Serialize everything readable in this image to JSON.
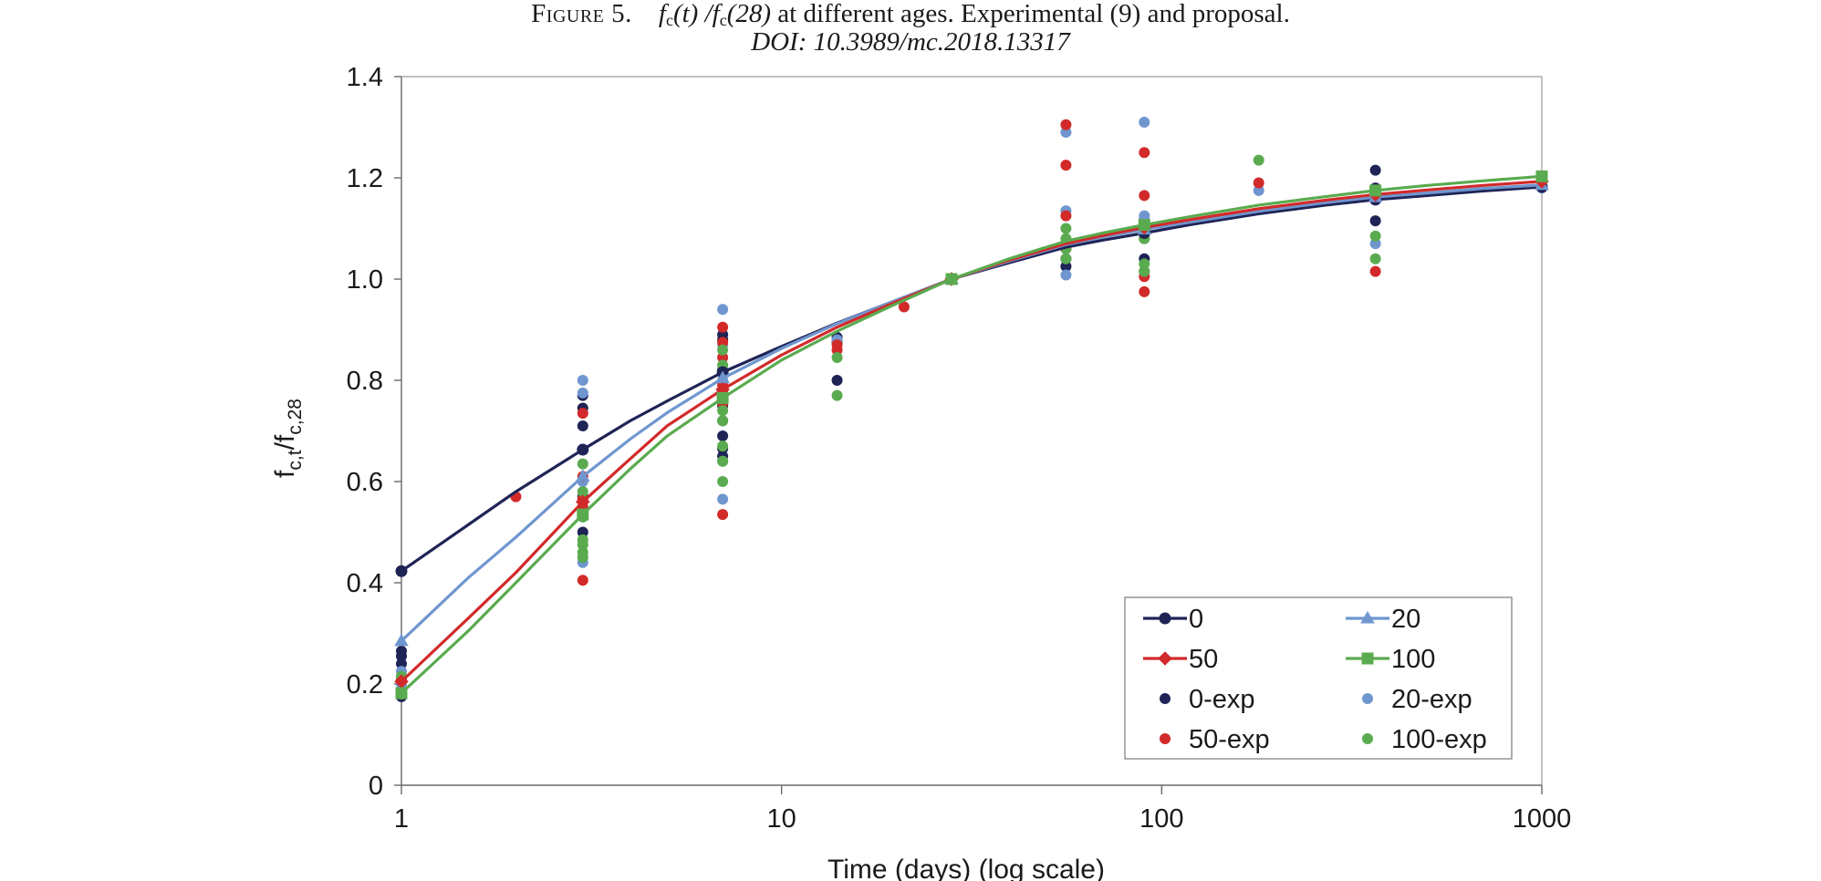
{
  "caption": {
    "figure_label": "Figure 5.",
    "f1": "f",
    "sub1": "c",
    "arg1": "(t)",
    "sep": " /",
    "f2": "f",
    "sub2": "c",
    "arg2": "(28)",
    "rest": " at different ages. Experimental (9) and proposal.",
    "doi": "DOI: 10.3989/mc.2018.13317"
  },
  "chart_data": {
    "type": "scatter",
    "x_scale": "log",
    "xlim": [
      1,
      1000
    ],
    "ylim": [
      0,
      1.4
    ],
    "xticks": [
      1,
      10,
      100,
      1000
    ],
    "xtick_labels": [
      "1",
      "10",
      "100",
      "1000"
    ],
    "yticks": [
      0,
      0.2,
      0.4,
      0.6,
      0.8,
      1.0,
      1.2,
      1.4
    ],
    "ytick_labels": [
      "0",
      "0.2",
      "0.4",
      "0.6",
      "0.8",
      "1.0",
      "1.2",
      "1.4"
    ],
    "xlabel": "Time (days) (log scale)",
    "ylabel_main": "f",
    "ylabel_sub1": "c,t",
    "ylabel_mid": "/f",
    "ylabel_sub2": "c,28",
    "grid": false,
    "legend_position": "bottom-right",
    "series": [
      {
        "name": "0",
        "kind": "line",
        "marker": "circle",
        "color": "#1f2456",
        "x": [
          1,
          2,
          3,
          4,
          5,
          7,
          10,
          14,
          20,
          28,
          40,
          56,
          70,
          90,
          120,
          180,
          270,
          365,
          500,
          700,
          1000
        ],
        "y": [
          0.423,
          0.58,
          0.663,
          0.72,
          0.759,
          0.816,
          0.867,
          0.913,
          0.958,
          1.0,
          1.033,
          1.063,
          1.077,
          1.091,
          1.108,
          1.129,
          1.146,
          1.157,
          1.165,
          1.174,
          1.182
        ],
        "marker_x": [
          1,
          3,
          7,
          28,
          90,
          365,
          1000
        ]
      },
      {
        "name": "20",
        "kind": "line",
        "marker": "triangle",
        "color": "#6f96cf",
        "x": [
          1,
          1.5,
          2,
          3,
          4,
          5,
          7,
          10,
          14,
          20,
          28,
          40,
          56,
          70,
          90,
          120,
          180,
          270,
          365,
          500,
          700,
          1000
        ],
        "y": [
          0.285,
          0.41,
          0.49,
          0.61,
          0.684,
          0.736,
          0.804,
          0.863,
          0.912,
          0.958,
          1.0,
          1.036,
          1.068,
          1.083,
          1.098,
          1.113,
          1.134,
          1.151,
          1.162,
          1.17,
          1.179,
          1.186
        ],
        "marker_x": [
          1,
          3,
          7,
          28,
          90,
          365,
          1000
        ]
      },
      {
        "name": "50",
        "kind": "line",
        "marker": "diamond",
        "color": "#d22a2a",
        "x": [
          1,
          1.5,
          2,
          3,
          4,
          5,
          7,
          10,
          14,
          20,
          28,
          40,
          56,
          70,
          90,
          120,
          180,
          270,
          365,
          500,
          700,
          1000
        ],
        "y": [
          0.205,
          0.33,
          0.42,
          0.56,
          0.645,
          0.71,
          0.782,
          0.85,
          0.905,
          0.955,
          1.0,
          1.038,
          1.07,
          1.086,
          1.102,
          1.118,
          1.139,
          1.156,
          1.167,
          1.176,
          1.185,
          1.193
        ],
        "marker_x": [
          1,
          3,
          7,
          28,
          90,
          365,
          1000
        ]
      },
      {
        "name": "100",
        "kind": "line",
        "marker": "square",
        "color": "#5aab4f",
        "x": [
          1,
          1.5,
          2,
          3,
          4,
          5,
          7,
          10,
          14,
          20,
          28,
          40,
          56,
          70,
          90,
          120,
          180,
          270,
          365,
          500,
          700,
          1000
        ],
        "y": [
          0.182,
          0.305,
          0.4,
          0.535,
          0.625,
          0.69,
          0.765,
          0.84,
          0.897,
          0.951,
          1.0,
          1.041,
          1.075,
          1.091,
          1.107,
          1.124,
          1.146,
          1.163,
          1.175,
          1.185,
          1.194,
          1.203
        ],
        "marker_x": [
          1,
          3,
          7,
          28,
          90,
          365,
          1000
        ]
      },
      {
        "name": "0-exp",
        "kind": "points",
        "color": "#1f2456",
        "x": [
          1,
          1,
          1,
          1,
          3,
          3,
          3,
          3,
          3,
          3,
          7,
          7,
          7,
          7,
          7,
          7,
          7,
          7,
          7,
          14,
          14,
          14,
          56,
          56,
          56,
          90,
          90,
          90,
          365,
          365,
          365,
          365
        ],
        "y": [
          0.175,
          0.24,
          0.255,
          0.265,
          0.5,
          0.545,
          0.57,
          0.71,
          0.745,
          0.77,
          0.65,
          0.665,
          0.69,
          0.72,
          0.75,
          0.78,
          0.82,
          0.88,
          0.89,
          0.8,
          0.875,
          0.885,
          1.025,
          1.04,
          1.06,
          1.04,
          1.08,
          1.105,
          1.115,
          1.16,
          1.18,
          1.215
        ]
      },
      {
        "name": "20-exp",
        "kind": "points",
        "color": "#6f96cf",
        "x": [
          1,
          1,
          3,
          3,
          3,
          3,
          7,
          7,
          7,
          7,
          7,
          7,
          14,
          56,
          56,
          56,
          56,
          90,
          90,
          90,
          90,
          180,
          365,
          365,
          1000
        ],
        "y": [
          0.2,
          0.225,
          0.44,
          0.6,
          0.775,
          0.8,
          0.565,
          0.64,
          0.76,
          0.8,
          0.87,
          0.94,
          0.88,
          1.008,
          1.07,
          1.135,
          1.29,
          1.09,
          1.12,
          1.125,
          1.31,
          1.175,
          1.07,
          1.16,
          1.18
        ]
      },
      {
        "name": "50-exp",
        "kind": "points",
        "color": "#d22a2a",
        "x": [
          1,
          2,
          3,
          3,
          3,
          3,
          3,
          7,
          7,
          7,
          7,
          7,
          7,
          7,
          14,
          14,
          21,
          28,
          56,
          56,
          56,
          56,
          90,
          90,
          90,
          90,
          90,
          180,
          365,
          365
        ],
        "y": [
          0.21,
          0.57,
          0.405,
          0.55,
          0.565,
          0.61,
          0.735,
          0.535,
          0.755,
          0.79,
          0.815,
          0.845,
          0.875,
          0.905,
          0.86,
          0.87,
          0.945,
          1.0,
          1.06,
          1.125,
          1.225,
          1.305,
          0.975,
          1.005,
          1.015,
          1.165,
          1.25,
          1.19,
          1.015,
          1.165
        ]
      },
      {
        "name": "100-exp",
        "kind": "points",
        "color": "#5aab4f",
        "x": [
          1,
          1,
          3,
          3,
          3,
          3,
          3,
          3,
          3,
          7,
          7,
          7,
          7,
          7,
          7,
          7,
          7,
          14,
          14,
          56,
          56,
          56,
          56,
          90,
          90,
          90,
          180,
          365,
          365
        ],
        "y": [
          0.18,
          0.215,
          0.45,
          0.46,
          0.475,
          0.485,
          0.53,
          0.58,
          0.635,
          0.6,
          0.64,
          0.67,
          0.72,
          0.74,
          0.78,
          0.83,
          0.86,
          0.77,
          0.845,
          1.04,
          1.06,
          1.08,
          1.1,
          1.015,
          1.03,
          1.08,
          1.235,
          1.04,
          1.085
        ]
      }
    ]
  }
}
